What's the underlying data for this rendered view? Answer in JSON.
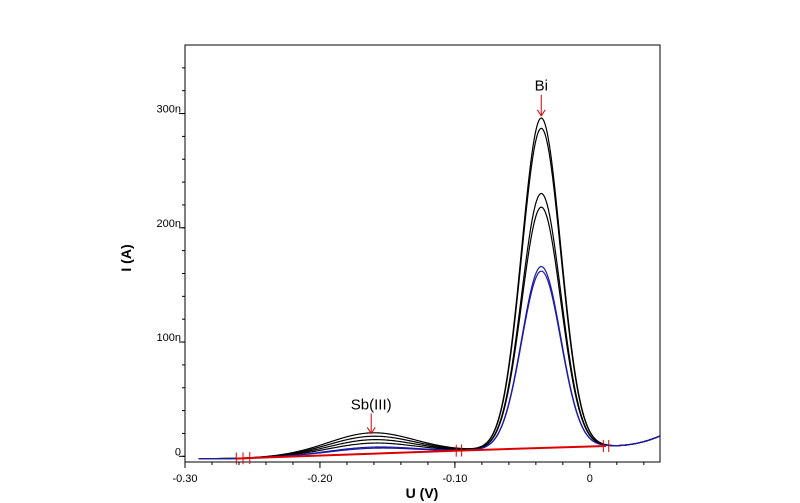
{
  "chart_data": {
    "type": "line",
    "xlabel": "U (V)",
    "ylabel": "I (A)",
    "xlim": [
      -0.3,
      0.052
    ],
    "ylim": [
      -5,
      360
    ],
    "xticks": [
      -0.3,
      -0.2,
      -0.1,
      0
    ],
    "xtick_labels": [
      "-0.30",
      "-0.20",
      "-0.10",
      "0"
    ],
    "yticks": [
      0,
      100,
      200,
      300
    ],
    "ytick_labels": [
      "0",
      "100n",
      "200n",
      "300n"
    ],
    "grid": false,
    "colors": {
      "black": "#000000",
      "blue": "#1a1aa6",
      "red": "#dd0000"
    },
    "series": [
      {
        "color": "#000000",
        "sb_peak": 18.5,
        "bi_peak": 296
      },
      {
        "color": "#000000",
        "sb_peak": 15.5,
        "bi_peak": 287
      },
      {
        "color": "#000000",
        "sb_peak": 12.5,
        "bi_peak": 230
      },
      {
        "color": "#000000",
        "sb_peak": 9.5,
        "bi_peak": 218
      },
      {
        "color": "#1a1aa6",
        "sb_peak": 6.0,
        "bi_peak": 166
      },
      {
        "color": "#1a1aa6",
        "sb_peak": 5.0,
        "bi_peak": 162
      }
    ],
    "baselines": [
      {
        "x": [
          -0.262,
          -0.097
        ],
        "y": [
          -2,
          5
        ]
      },
      {
        "x": [
          -0.097,
          0.012
        ],
        "y": [
          5,
          9
        ]
      }
    ],
    "baseline_markers": [
      -0.262,
      -0.257,
      -0.252,
      -0.099,
      -0.095,
      0.01,
      0.014
    ],
    "annotations": [
      {
        "text": "Sb(III)",
        "x": -0.162,
        "y": 20,
        "label_y": 41
      },
      {
        "text": "Bi",
        "x": -0.036,
        "y": 298,
        "label_y": 320
      }
    ]
  }
}
